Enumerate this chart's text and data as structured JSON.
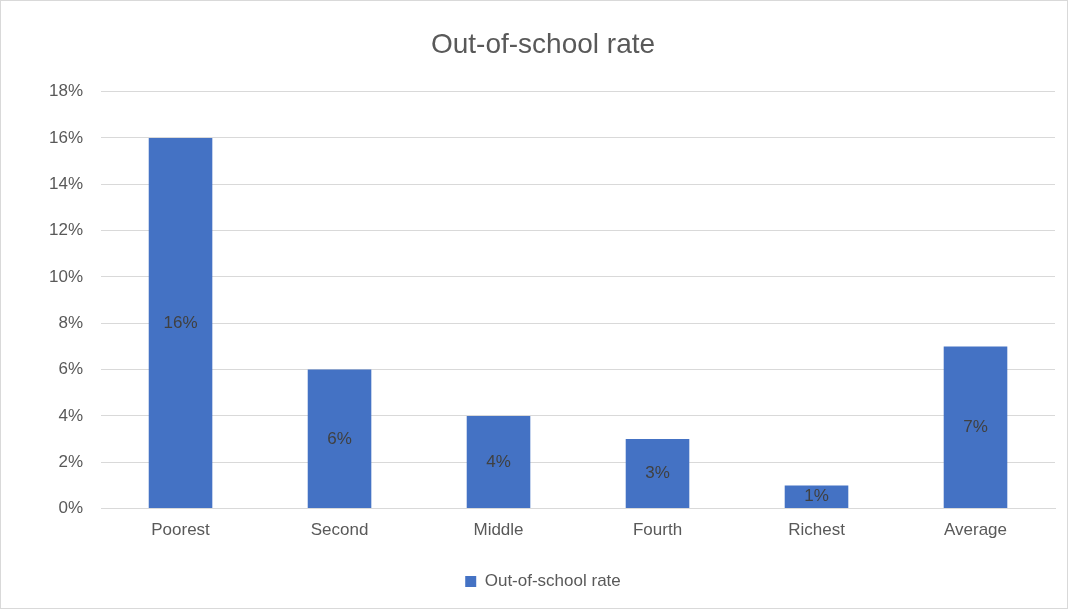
{
  "chart_data": {
    "type": "bar",
    "title": "Out-of-school rate",
    "categories": [
      "Poorest",
      "Second",
      "Middle",
      "Fourth",
      "Richest",
      "Average"
    ],
    "series": [
      {
        "name": "Out-of-school rate",
        "color": "#4472c4",
        "values": [
          16,
          6,
          4,
          3,
          1,
          7
        ],
        "value_labels": [
          "16%",
          "6%",
          "4%",
          "3%",
          "1%",
          "7%"
        ]
      }
    ],
    "ylim": [
      0,
      18
    ],
    "yticks": [
      {
        "value": 0,
        "label": "0%"
      },
      {
        "value": 2,
        "label": "2%"
      },
      {
        "value": 4,
        "label": "4%"
      },
      {
        "value": 6,
        "label": "6%"
      },
      {
        "value": 8,
        "label": "8%"
      },
      {
        "value": 10,
        "label": "10%"
      },
      {
        "value": 12,
        "label": "12%"
      },
      {
        "value": 14,
        "label": "14%"
      },
      {
        "value": 16,
        "label": "16%"
      },
      {
        "value": 18,
        "label": "18%"
      }
    ],
    "grid": "y",
    "legend": "bottom"
  }
}
